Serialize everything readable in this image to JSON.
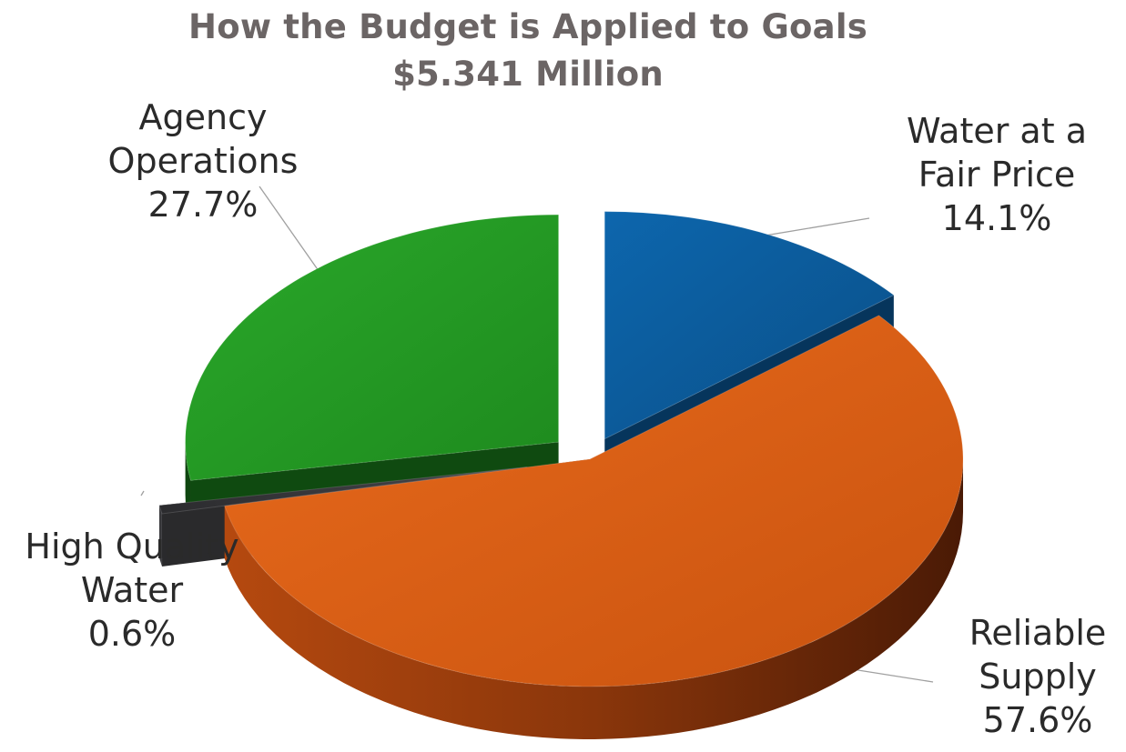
{
  "chart_data": {
    "type": "pie",
    "title": "How the Budget is Applied to Goals",
    "subtitle": "$5.341 Million",
    "slices": [
      {
        "name": "Water at a Fair Price",
        "value": 14.1,
        "label_lines": [
          "Water at a",
          "Fair Price",
          "14.1%"
        ],
        "color": "#0a5c9e",
        "side_color": "#06355c"
      },
      {
        "name": "Reliable Supply",
        "value": 57.6,
        "label_lines": [
          "Reliable",
          "Supply",
          "57.6%"
        ],
        "color": "#e0631a",
        "side_color": "#8e3a0c"
      },
      {
        "name": "High Quality Water",
        "value": 0.6,
        "label_lines": [
          "High Quality",
          "Water",
          "0.6%"
        ],
        "color": "#3a3a3d",
        "side_color": "#2a2a2c"
      },
      {
        "name": "Agency Operations",
        "value": 27.7,
        "label_lines": [
          "Agency",
          "Operations",
          "27.7%"
        ],
        "color": "#26a326",
        "side_color": "#0f4a10"
      }
    ]
  }
}
